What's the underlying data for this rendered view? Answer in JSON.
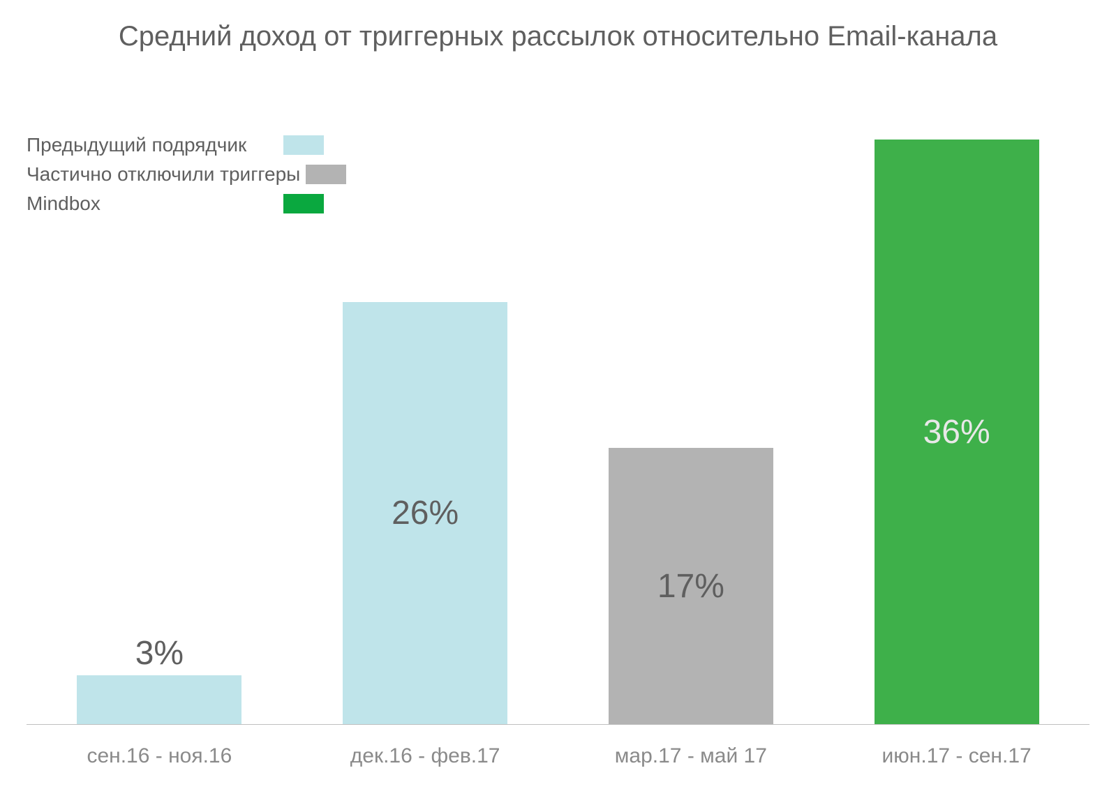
{
  "chart": {
    "type": "bar",
    "title": "Средний доход от триггерных рассылок относительно Email-канала",
    "title_fontsize": 40,
    "title_color": "#5f5f5f",
    "background_color": "#ffffff",
    "axis_color": "#bfbfbf",
    "legend": {
      "fontsize": 28,
      "text_color": "#5f5f5f",
      "items": [
        {
          "label": "Предыдущий подрядчик",
          "color": "#bfe4ea"
        },
        {
          "label": "Частично отключили триггеры",
          "color": "#b3b3b3"
        },
        {
          "label": "Mindbox",
          "color": "#0aa83f"
        }
      ]
    },
    "y": {
      "min": 0,
      "max": 36
    },
    "bar_width_pct": 62,
    "bars": [
      {
        "category": "сен.16 - ноя.16",
        "value": 3,
        "display": "3%",
        "color": "#bfe4ea",
        "label_inside": false,
        "label_color": "#5f5f5f"
      },
      {
        "category": "дек.16 - фев.17",
        "value": 26,
        "display": "26%",
        "color": "#bfe4ea",
        "label_inside": true,
        "label_color": "#5f5f5f"
      },
      {
        "category": "мар.17 - май 17",
        "value": 17,
        "display": "17%",
        "color": "#b3b3b3",
        "label_inside": true,
        "label_color": "#5f5f5f"
      },
      {
        "category": "июн.17 - сен.17",
        "value": 36,
        "display": "36%",
        "color": "#3eb04a",
        "label_inside": true,
        "label_color": "#e8e8e8"
      }
    ],
    "bar_label_fontsize": 48,
    "xlabel_fontsize": 30,
    "xlabel_color": "#8a8a8a"
  }
}
